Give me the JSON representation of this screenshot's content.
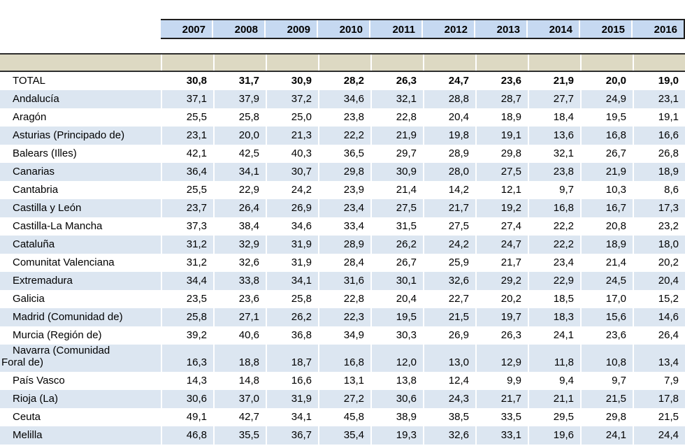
{
  "colors": {
    "year_header_fill": "#c6d9f1",
    "stripe_fill": "#dce6f1",
    "band_fill": "#ddd9c3",
    "border_dark": "#1f1f1f",
    "separator_white": "#ffffff",
    "text": "#000000"
  },
  "chart_data": {
    "type": "table",
    "title": "",
    "columns": [
      "2007",
      "2008",
      "2009",
      "2010",
      "2011",
      "2012",
      "2013",
      "2014",
      "2015",
      "2016"
    ],
    "rows": [
      {
        "label": "TOTAL",
        "bold": true,
        "values": [
          "30,8",
          "31,7",
          "30,9",
          "28,2",
          "26,3",
          "24,7",
          "23,6",
          "21,9",
          "20,0",
          "19,0"
        ]
      },
      {
        "label": "Andalucía",
        "values": [
          "37,1",
          "37,9",
          "37,2",
          "34,6",
          "32,1",
          "28,8",
          "28,7",
          "27,7",
          "24,9",
          "23,1"
        ]
      },
      {
        "label": "Aragón",
        "values": [
          "25,5",
          "25,8",
          "25,0",
          "23,8",
          "22,8",
          "20,4",
          "18,9",
          "18,4",
          "19,5",
          "19,1"
        ]
      },
      {
        "label": "Asturias (Principado de)",
        "values": [
          "23,1",
          "20,0",
          "21,3",
          "22,2",
          "21,9",
          "19,8",
          "19,1",
          "13,6",
          "16,8",
          "16,6"
        ]
      },
      {
        "label": "Balears (Illes)",
        "values": [
          "42,1",
          "42,5",
          "40,3",
          "36,5",
          "29,7",
          "28,9",
          "29,8",
          "32,1",
          "26,7",
          "26,8"
        ]
      },
      {
        "label": "Canarias",
        "values": [
          "36,4",
          "34,1",
          "30,7",
          "29,8",
          "30,9",
          "28,0",
          "27,5",
          "23,8",
          "21,9",
          "18,9"
        ]
      },
      {
        "label": "Cantabria",
        "values": [
          "25,5",
          "22,9",
          "24,2",
          "23,9",
          "21,4",
          "14,2",
          "12,1",
          "9,7",
          "10,3",
          "8,6"
        ]
      },
      {
        "label": "Castilla y León",
        "values": [
          "23,7",
          "26,4",
          "26,9",
          "23,4",
          "27,5",
          "21,7",
          "19,2",
          "16,8",
          "16,7",
          "17,3"
        ]
      },
      {
        "label": "Castilla-La Mancha",
        "values": [
          "37,3",
          "38,4",
          "34,6",
          "33,4",
          "31,5",
          "27,5",
          "27,4",
          "22,2",
          "20,8",
          "23,2"
        ]
      },
      {
        "label": "Cataluña",
        "values": [
          "31,2",
          "32,9",
          "31,9",
          "28,9",
          "26,2",
          "24,2",
          "24,7",
          "22,2",
          "18,9",
          "18,0"
        ]
      },
      {
        "label": "Comunitat Valenciana",
        "values": [
          "31,2",
          "32,6",
          "31,9",
          "28,4",
          "26,7",
          "25,9",
          "21,7",
          "23,4",
          "21,4",
          "20,2"
        ]
      },
      {
        "label": "Extremadura",
        "values": [
          "34,4",
          "33,8",
          "34,1",
          "31,6",
          "30,1",
          "32,6",
          "29,2",
          "22,9",
          "24,5",
          "20,4"
        ]
      },
      {
        "label": "Galicia",
        "values": [
          "23,5",
          "23,6",
          "25,8",
          "22,8",
          "20,4",
          "22,7",
          "20,2",
          "18,5",
          "17,0",
          "15,2"
        ]
      },
      {
        "label": "Madrid (Comunidad de)",
        "values": [
          "25,8",
          "27,1",
          "26,2",
          "22,3",
          "19,5",
          "21,5",
          "19,7",
          "18,3",
          "15,6",
          "14,6"
        ]
      },
      {
        "label": "Murcia (Región de)",
        "values": [
          "39,2",
          "40,6",
          "36,8",
          "34,9",
          "30,3",
          "26,9",
          "26,3",
          "24,1",
          "23,6",
          "26,4"
        ]
      },
      {
        "label": "Navarra (Comunidad Foral de)",
        "two_line": true,
        "values": [
          "16,3",
          "18,8",
          "18,7",
          "16,8",
          "12,0",
          "13,0",
          "12,9",
          "11,8",
          "10,8",
          "13,4"
        ]
      },
      {
        "label": "País Vasco",
        "values": [
          "14,3",
          "14,8",
          "16,6",
          "13,1",
          "13,8",
          "12,4",
          "9,9",
          "9,4",
          "9,7",
          "7,9"
        ]
      },
      {
        "label": "Rioja (La)",
        "values": [
          "30,6",
          "37,0",
          "31,9",
          "27,2",
          "30,6",
          "24,3",
          "21,7",
          "21,1",
          "21,5",
          "17,8"
        ]
      },
      {
        "label": "Ceuta",
        "values": [
          "49,1",
          "42,7",
          "34,1",
          "45,8",
          "38,9",
          "38,5",
          "33,5",
          "29,5",
          "29,8",
          "21,5"
        ]
      },
      {
        "label": "Melilla",
        "values": [
          "46,8",
          "35,5",
          "36,7",
          "35,4",
          "19,3",
          "32,6",
          "33,1",
          "19,6",
          "24,1",
          "24,4"
        ]
      }
    ]
  }
}
